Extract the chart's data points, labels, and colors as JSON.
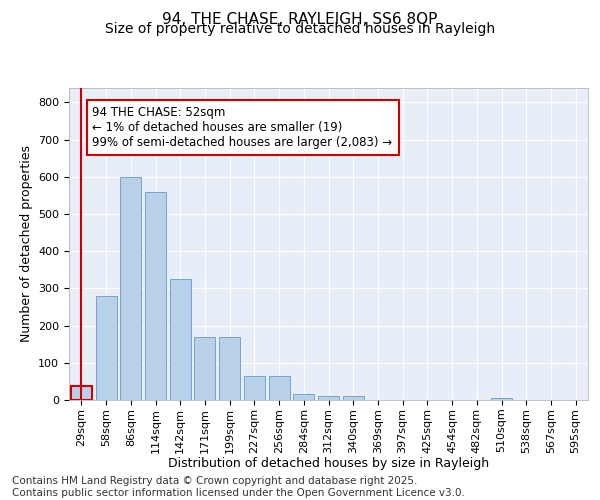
{
  "title1": "94, THE CHASE, RAYLEIGH, SS6 8QP",
  "title2": "Size of property relative to detached houses in Rayleigh",
  "xlabel": "Distribution of detached houses by size in Rayleigh",
  "ylabel": "Number of detached properties",
  "categories": [
    "29sqm",
    "58sqm",
    "86sqm",
    "114sqm",
    "142sqm",
    "171sqm",
    "199sqm",
    "227sqm",
    "256sqm",
    "284sqm",
    "312sqm",
    "340sqm",
    "369sqm",
    "397sqm",
    "425sqm",
    "454sqm",
    "482sqm",
    "510sqm",
    "538sqm",
    "567sqm",
    "595sqm"
  ],
  "values": [
    37,
    280,
    600,
    560,
    325,
    170,
    170,
    65,
    65,
    15,
    12,
    12,
    0,
    0,
    0,
    0,
    0,
    5,
    0,
    0,
    0
  ],
  "bar_color": "#b8d0e8",
  "bar_edge_color": "#6699cc",
  "highlight_bar_index": 0,
  "highlight_bar_edge_color": "#cc0000",
  "annotation_text": "94 THE CHASE: 52sqm\n← 1% of detached houses are smaller (19)\n99% of semi-detached houses are larger (2,083) →",
  "annotation_box_edge_color": "#cc0000",
  "ylim": [
    0,
    840
  ],
  "yticks": [
    0,
    100,
    200,
    300,
    400,
    500,
    600,
    700,
    800
  ],
  "background_color": "#e8eef8",
  "grid_color": "#ffffff",
  "footnote": "Contains HM Land Registry data © Crown copyright and database right 2025.\nContains public sector information licensed under the Open Government Licence v3.0.",
  "title1_fontsize": 11,
  "title2_fontsize": 10,
  "xlabel_fontsize": 9,
  "ylabel_fontsize": 9,
  "tick_fontsize": 8,
  "annotation_fontsize": 8.5,
  "footnote_fontsize": 7.5
}
